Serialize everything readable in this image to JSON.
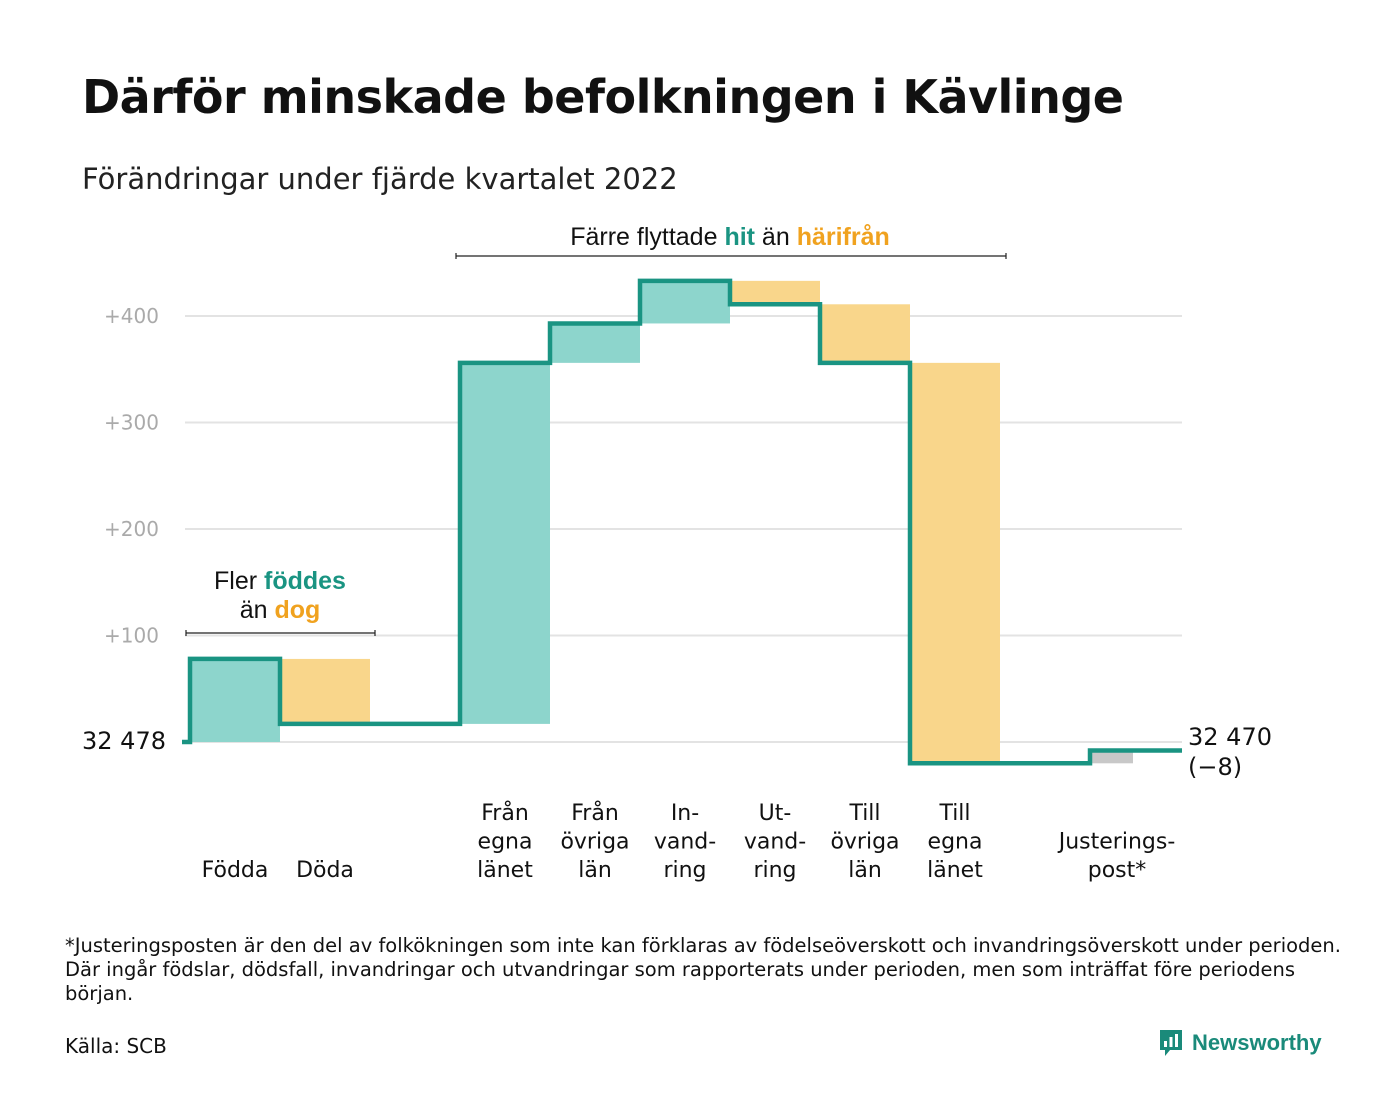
{
  "title": "Därför minskade befolkningen i Kävlinge",
  "subtitle": "Förändringar under fjärde kvartalet 2022",
  "colors": {
    "increase_bar": "#8dd5cc",
    "decrease_bar": "#f9d68b",
    "adjustment_bar": "#c8c8c8",
    "step_line": "#1a9482",
    "grid": "#e3e3e3",
    "tick_label": "#aaaaaa",
    "highlight_green": "#1a9482",
    "highlight_orange": "#f0a21f"
  },
  "chart_data": {
    "type": "waterfall",
    "start_value": 32478,
    "start_label": "32 478",
    "end_value": 32470,
    "end_label": "32 470",
    "end_change_label": "(−8)",
    "ylim": [
      -20,
      440
    ],
    "yticks": [
      100,
      200,
      300,
      400
    ],
    "ytick_labels": [
      "+100",
      "+200",
      "+300",
      "+400"
    ],
    "grid": true,
    "steps": [
      {
        "label_lines": [
          "Födda"
        ],
        "value": 78,
        "kind": "increase"
      },
      {
        "label_lines": [
          "Döda"
        ],
        "value": -61,
        "kind": "decrease"
      },
      {
        "label_lines": [
          "Från",
          "egna",
          "länet"
        ],
        "value": 339,
        "kind": "increase"
      },
      {
        "label_lines": [
          "Från",
          "övriga",
          "län"
        ],
        "value": 37,
        "kind": "increase"
      },
      {
        "label_lines": [
          "In-",
          "vand-",
          "ring"
        ],
        "value": 40,
        "kind": "increase"
      },
      {
        "label_lines": [
          "Ut-",
          "vand-",
          "ring"
        ],
        "value": -22,
        "kind": "decrease"
      },
      {
        "label_lines": [
          "Till",
          "övriga",
          "län"
        ],
        "value": -55,
        "kind": "decrease"
      },
      {
        "label_lines": [
          "Till",
          "egna",
          "länet"
        ],
        "value": -376,
        "kind": "decrease"
      },
      {
        "label_lines": [
          "Justerings-",
          "post*"
        ],
        "value": 12,
        "kind": "adjustment"
      }
    ],
    "annotations": [
      {
        "lines": [
          [
            {
              "text": "Fler ",
              "style": "plain"
            },
            {
              "text": "föddes",
              "style": "green"
            }
          ],
          [
            {
              "text": "än ",
              "style": "plain"
            },
            {
              "text": "dog",
              "style": "orange"
            }
          ]
        ]
      },
      {
        "lines": [
          [
            {
              "text": "Färre flyttade ",
              "style": "plain"
            },
            {
              "text": "hit",
              "style": "green"
            },
            {
              "text": " än ",
              "style": "plain"
            },
            {
              "text": "härifrån",
              "style": "orange"
            }
          ]
        ]
      }
    ]
  },
  "footnote": "*Justeringsposten är den del av folkökningen som inte kan förklaras av födelseöverskott och invandringsöverskott under perioden. Där ingår födslar, dödsfall, invandringar och utvandringar som rapporterats under perioden, men som inträffat före periodens början.",
  "source": "Källa: SCB",
  "brand": {
    "name": "Newsworthy",
    "icon": "newsworthy-logo-icon"
  }
}
